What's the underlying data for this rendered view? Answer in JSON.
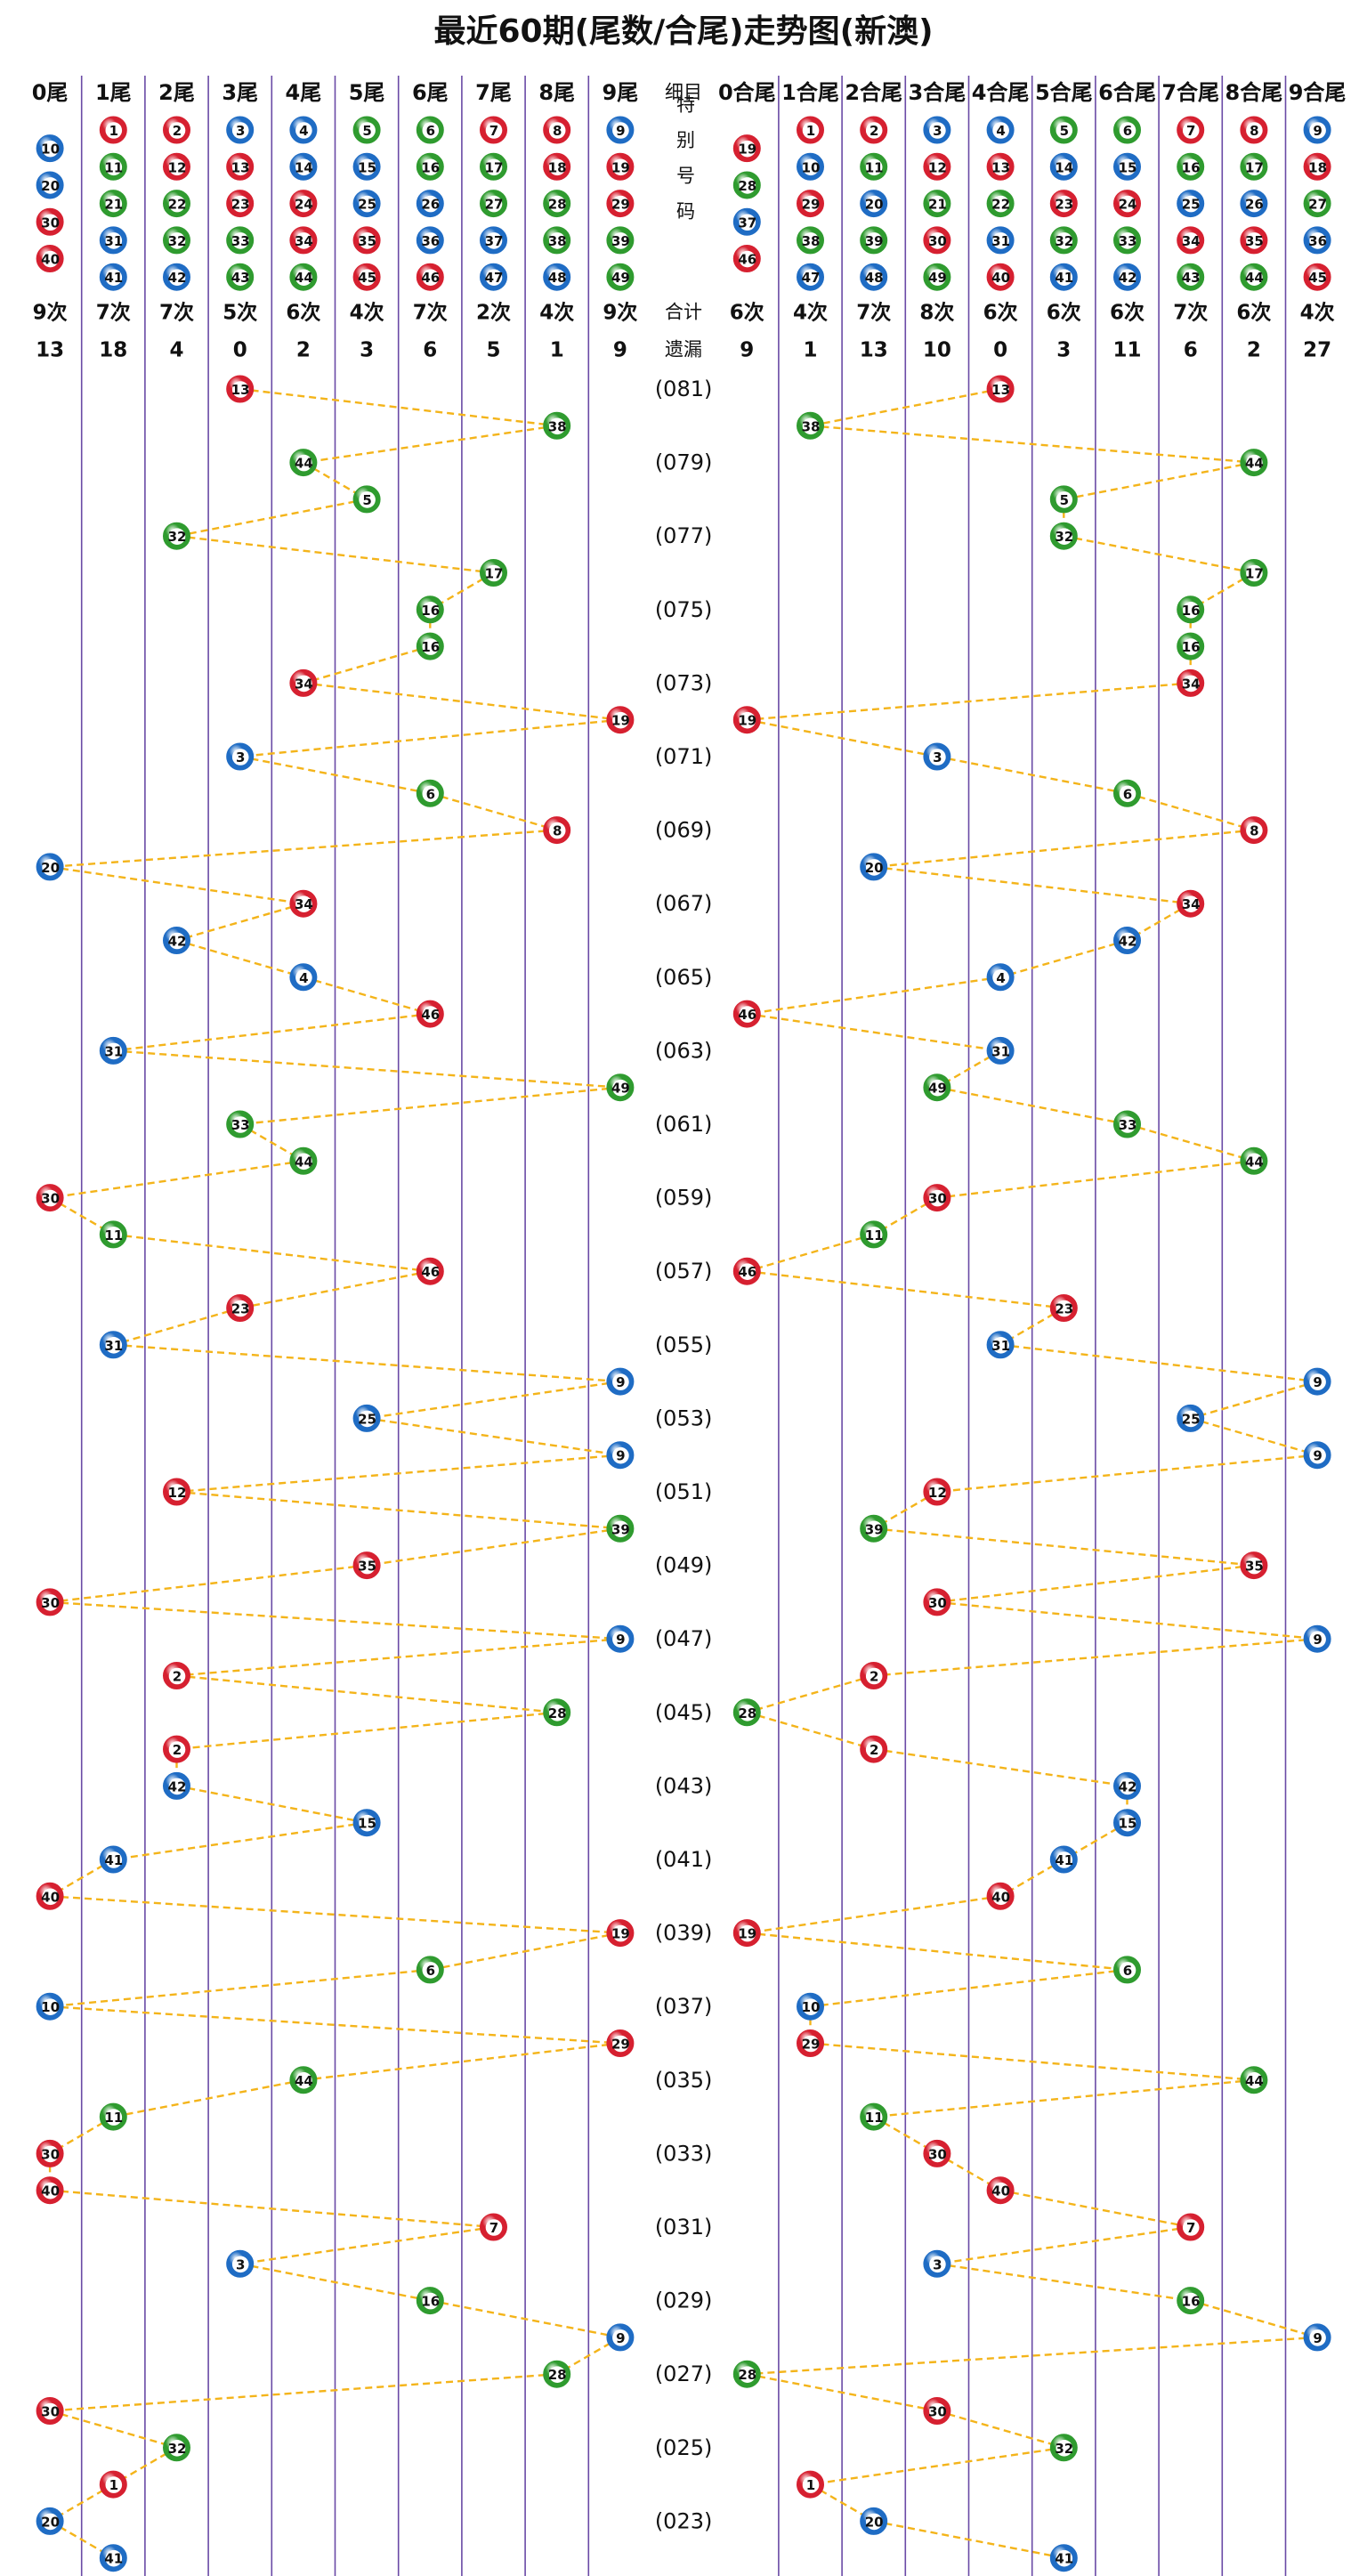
{
  "title": "最近60期(尾数/合尾)走势图(新澳)",
  "ball_colors": [
    {
      "color": "#d62030",
      "numbers": [
        1,
        2,
        7,
        8,
        12,
        13,
        18,
        19,
        23,
        24,
        29,
        30,
        34,
        35,
        40,
        45,
        46
      ]
    },
    {
      "color": "#1f6cc4",
      "numbers": [
        3,
        4,
        9,
        10,
        14,
        15,
        20,
        25,
        26,
        31,
        36,
        37,
        41,
        42,
        47,
        48
      ]
    },
    {
      "color": "#2f9b2f",
      "numbers": [
        5,
        6,
        11,
        16,
        17,
        21,
        22,
        27,
        28,
        32,
        33,
        38,
        39,
        43,
        44,
        49
      ]
    }
  ],
  "left": {
    "headers": [
      "0尾",
      "1尾",
      "2尾",
      "3尾",
      "4尾",
      "5尾",
      "6尾",
      "7尾",
      "8尾",
      "9尾"
    ],
    "groups": [
      [
        10,
        20,
        30,
        40
      ],
      [
        1,
        11,
        21,
        31,
        41
      ],
      [
        2,
        12,
        22,
        32,
        42
      ],
      [
        3,
        13,
        23,
        33,
        43
      ],
      [
        4,
        14,
        24,
        34,
        44
      ],
      [
        5,
        15,
        25,
        35,
        45
      ],
      [
        6,
        16,
        26,
        36,
        46
      ],
      [
        7,
        17,
        27,
        37,
        47
      ],
      [
        8,
        18,
        28,
        38,
        48
      ],
      [
        9,
        19,
        29,
        39,
        49
      ]
    ],
    "counts": [
      "9次",
      "7次",
      "7次",
      "5次",
      "6次",
      "4次",
      "7次",
      "2次",
      "4次",
      "9次"
    ],
    "missing": [
      13,
      18,
      4,
      0,
      2,
      3,
      6,
      5,
      1,
      9
    ]
  },
  "middle": {
    "header": "细目",
    "special": "特别号码",
    "count_label": "合计",
    "missing_label": "遗漏"
  },
  "right": {
    "headers": [
      "0合尾",
      "1合尾",
      "2合尾",
      "3合尾",
      "4合尾",
      "5合尾",
      "6合尾",
      "7合尾",
      "8合尾",
      "9合尾"
    ],
    "groups": [
      [
        19,
        28,
        37,
        46
      ],
      [
        1,
        10,
        29,
        38,
        47
      ],
      [
        2,
        11,
        20,
        39,
        48
      ],
      [
        3,
        12,
        21,
        30,
        49
      ],
      [
        4,
        13,
        22,
        31,
        40
      ],
      [
        5,
        14,
        23,
        32,
        41
      ],
      [
        6,
        15,
        24,
        33,
        42
      ],
      [
        7,
        16,
        25,
        34,
        43
      ],
      [
        8,
        17,
        26,
        35,
        44
      ],
      [
        9,
        18,
        27,
        36,
        45
      ]
    ],
    "counts": [
      "6次",
      "4次",
      "7次",
      "8次",
      "6次",
      "6次",
      "6次",
      "7次",
      "6次",
      "4次"
    ],
    "missing": [
      9,
      1,
      13,
      10,
      0,
      3,
      11,
      6,
      2,
      27
    ]
  },
  "rows": [
    {
      "period": "(081)",
      "number": 13
    },
    {
      "number": 38
    },
    {
      "period": "(079)",
      "number": 44
    },
    {
      "number": 5
    },
    {
      "period": "(077)",
      "number": 32
    },
    {
      "number": 17
    },
    {
      "period": "(075)",
      "number": 16
    },
    {
      "number": 16
    },
    {
      "period": "(073)",
      "number": 34
    },
    {
      "number": 19
    },
    {
      "period": "(071)",
      "number": 3
    },
    {
      "number": 6
    },
    {
      "period": "(069)",
      "number": 8
    },
    {
      "number": 20
    },
    {
      "period": "(067)",
      "number": 34
    },
    {
      "number": 42
    },
    {
      "period": "(065)",
      "number": 4
    },
    {
      "number": 46
    },
    {
      "period": "(063)",
      "number": 31
    },
    {
      "number": 49
    },
    {
      "period": "(061)",
      "number": 33
    },
    {
      "number": 44
    },
    {
      "period": "(059)",
      "number": 30
    },
    {
      "number": 11
    },
    {
      "period": "(057)",
      "number": 46
    },
    {
      "number": 23
    },
    {
      "period": "(055)",
      "number": 31
    },
    {
      "number": 9
    },
    {
      "period": "(053)",
      "number": 25
    },
    {
      "number": 9
    },
    {
      "period": "(051)",
      "number": 12
    },
    {
      "number": 39
    },
    {
      "period": "(049)",
      "number": 35
    },
    {
      "number": 30
    },
    {
      "period": "(047)",
      "number": 9
    },
    {
      "number": 2
    },
    {
      "period": "(045)",
      "number": 28
    },
    {
      "number": 2
    },
    {
      "period": "(043)",
      "number": 42
    },
    {
      "number": 15
    },
    {
      "period": "(041)",
      "number": 41
    },
    {
      "number": 40
    },
    {
      "period": "(039)",
      "number": 19
    },
    {
      "number": 6
    },
    {
      "period": "(037)",
      "number": 10
    },
    {
      "number": 29
    },
    {
      "period": "(035)",
      "number": 44
    },
    {
      "number": 11
    },
    {
      "period": "(033)",
      "number": 30
    },
    {
      "number": 40
    },
    {
      "period": "(031)",
      "number": 7
    },
    {
      "number": 3
    },
    {
      "period": "(029)",
      "number": 16
    },
    {
      "number": 9
    },
    {
      "period": "(027)",
      "number": 28
    },
    {
      "number": 30
    },
    {
      "period": "(025)",
      "number": 32
    },
    {
      "number": 1
    },
    {
      "period": "(023)",
      "number": 20
    },
    {
      "number": 41
    }
  ]
}
